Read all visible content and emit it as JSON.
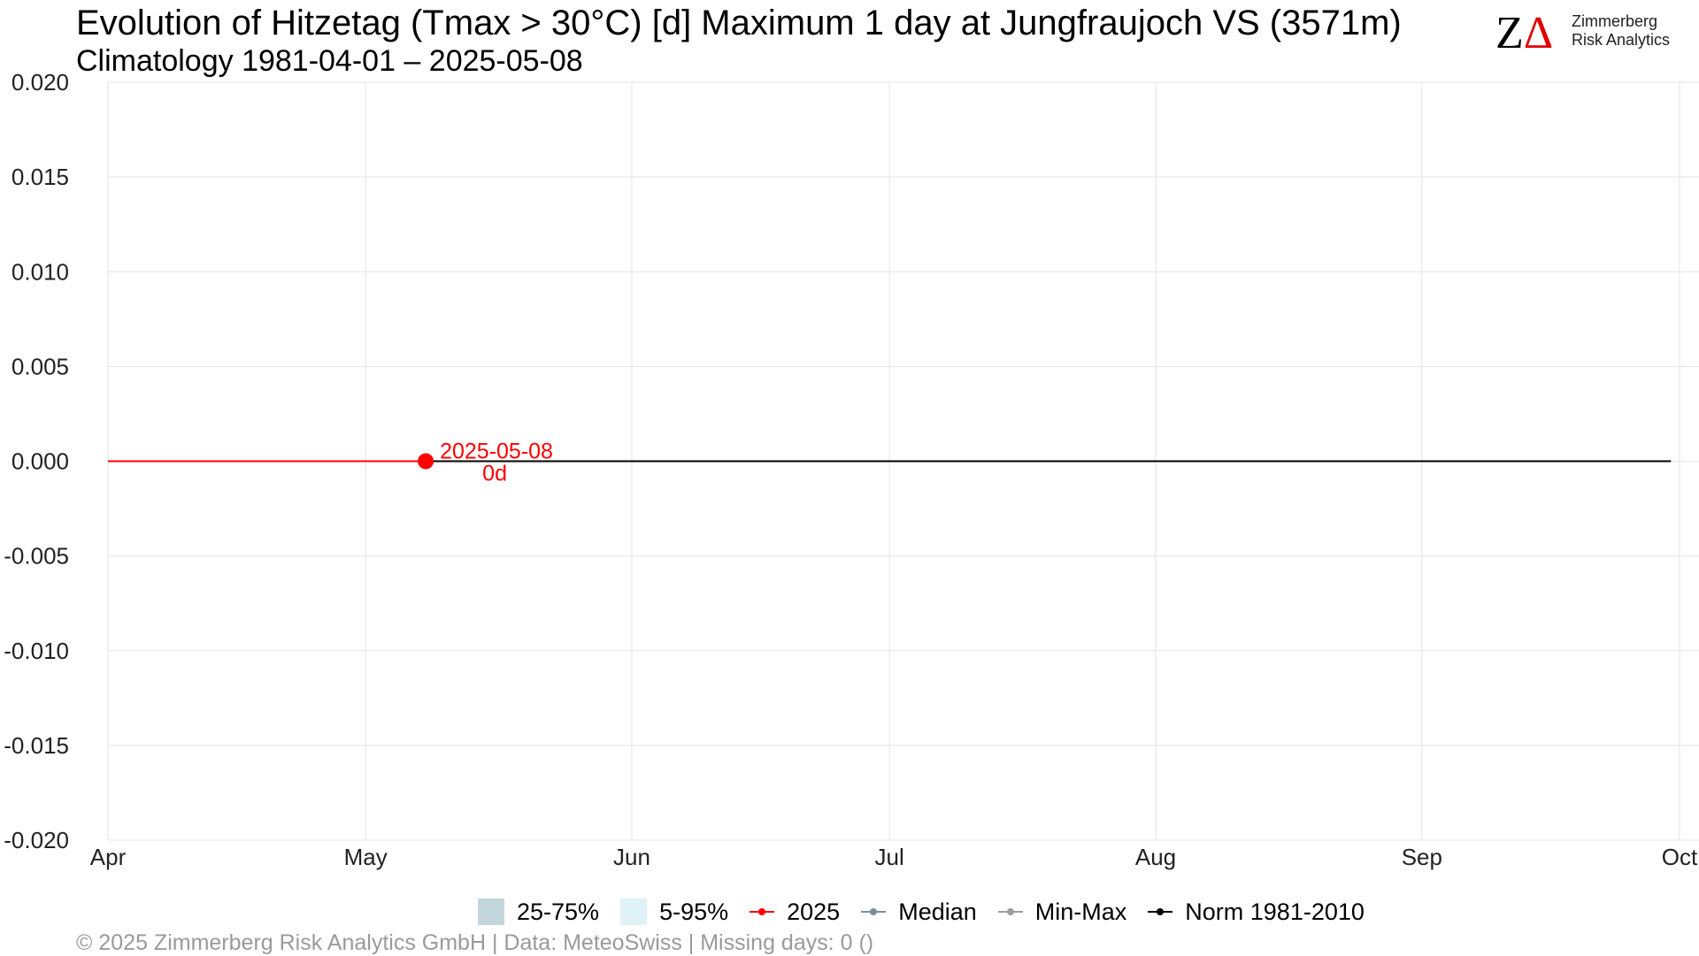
{
  "header": {
    "title": "Evolution of Hitzetag (Tmax > 30°C) [d] Maximum 1 day at Jungfraujoch  VS (3571m)",
    "subtitle": "Climatology 1981-04-01 – 2025-05-08"
  },
  "logo": {
    "z": "Z",
    "delta": "Δ",
    "line1": "Zimmerberg",
    "line2": "Risk Analytics"
  },
  "chart_data": {
    "type": "line",
    "x_axis": {
      "type": "date",
      "range": [
        "2025-04-01",
        "2025-10-01"
      ],
      "ticks": [
        {
          "date": "2025-04-01",
          "label": "Apr"
        },
        {
          "date": "2025-05-01",
          "label": "May"
        },
        {
          "date": "2025-06-01",
          "label": "Jun"
        },
        {
          "date": "2025-07-01",
          "label": "Jul"
        },
        {
          "date": "2025-08-01",
          "label": "Aug"
        },
        {
          "date": "2025-09-01",
          "label": "Sep"
        },
        {
          "date": "2025-10-01",
          "label": "Oct"
        }
      ]
    },
    "y_axis": {
      "ylim": [
        -0.02,
        0.02
      ],
      "ticks": [
        0.02,
        0.015,
        0.01,
        0.005,
        0.0,
        -0.005,
        -0.01,
        -0.015,
        -0.02
      ],
      "tick_labels": [
        "0.020",
        "0.015",
        "0.010",
        "0.005",
        "0.000",
        "-0.005",
        "-0.010",
        "-0.015",
        "-0.020"
      ]
    },
    "grid": true,
    "series": [
      {
        "name": "Norm 1981-2010",
        "color": "#000000",
        "x": [
          "2025-04-01",
          "2025-09-30"
        ],
        "y": [
          0,
          0
        ]
      },
      {
        "name": "2025",
        "color": "#ff0000",
        "x": [
          "2025-04-01",
          "2025-05-08"
        ],
        "y": [
          0,
          0
        ]
      }
    ],
    "current_point": {
      "date": "2025-05-08",
      "value": 0,
      "color": "#ff0000"
    },
    "annotation": {
      "date_label": "2025-05-08",
      "value_label": "0d"
    },
    "legend": {
      "position": "bottom",
      "items": [
        {
          "label": "25-75%",
          "kind": "band",
          "color": "#c3d6dc"
        },
        {
          "label": "5-95%",
          "kind": "band",
          "color": "#dff2f8"
        },
        {
          "label": "2025",
          "kind": "line",
          "color": "#ff0000"
        },
        {
          "label": "Median",
          "kind": "line",
          "color": "#7a8e96"
        },
        {
          "label": "Min-Max",
          "kind": "line",
          "color": "#9e9e9e"
        },
        {
          "label": "Norm 1981-2010",
          "kind": "line",
          "color": "#000000"
        }
      ]
    }
  },
  "footer": {
    "text": "©  2025 Zimmerberg Risk Analytics GmbH | Data: MeteoSwiss | Missing days: 0 ()"
  }
}
